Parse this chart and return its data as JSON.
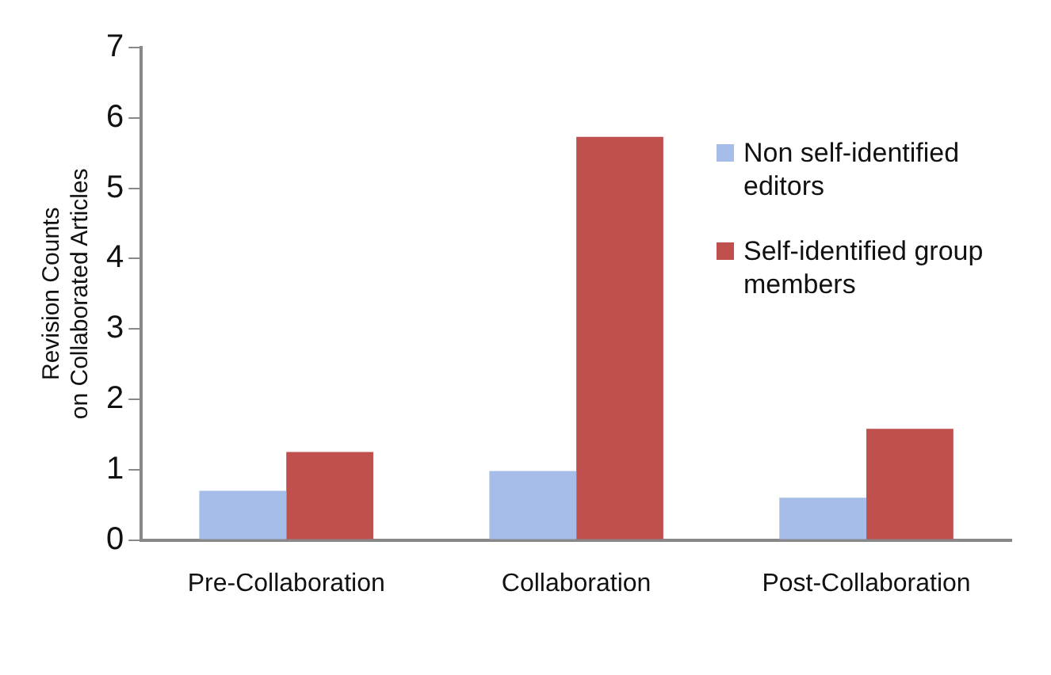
{
  "chart_data": {
    "type": "bar",
    "ylabel": "Revision Counts\non Collaborated Articles",
    "categories": [
      "Pre-Collaboration",
      "Collaboration",
      "Post-Collaboration"
    ],
    "series": [
      {
        "name": "Non self-identified editors",
        "color": "#a7bde9",
        "values": [
          0.7,
          0.98,
          0.6
        ]
      },
      {
        "name": "Self-identified group members",
        "color": "#c0504d",
        "values": [
          1.25,
          5.73,
          1.58
        ]
      }
    ],
    "ylim": [
      0,
      7
    ],
    "yticks": [
      0,
      1,
      2,
      3,
      4,
      5,
      6,
      7
    ],
    "grid": false,
    "legend": "right"
  }
}
